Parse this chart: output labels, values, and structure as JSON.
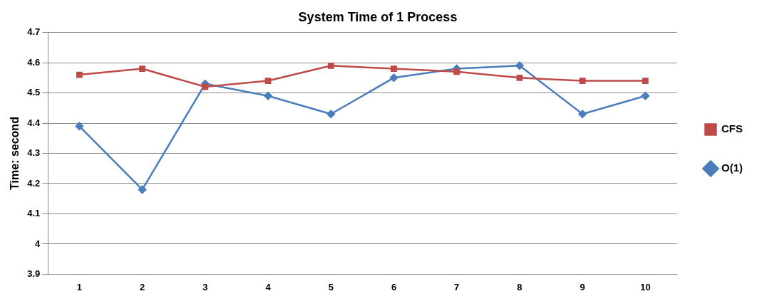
{
  "chart_data": {
    "type": "line",
    "title": "System Time of 1 Process",
    "ylabel": "Time: second",
    "categories": [
      "1",
      "2",
      "3",
      "4",
      "5",
      "6",
      "7",
      "8",
      "9",
      "10"
    ],
    "series": [
      {
        "name": "O(1)",
        "color": "#4a7ebb",
        "marker": "diamond",
        "values": [
          4.39,
          4.18,
          4.53,
          4.49,
          4.43,
          4.55,
          4.58,
          4.59,
          4.43,
          4.49
        ]
      },
      {
        "name": "CFS",
        "color": "#be4b48",
        "marker": "square",
        "values": [
          4.56,
          4.58,
          4.52,
          4.54,
          4.59,
          4.58,
          4.57,
          4.55,
          4.54,
          4.54
        ]
      }
    ],
    "ylim": [
      3.9,
      4.7
    ],
    "yticks": [
      3.9,
      4,
      4.1,
      4.2,
      4.3,
      4.4,
      4.5,
      4.6,
      4.7
    ],
    "grid": "y",
    "legend": "right",
    "line_style": "solid"
  }
}
